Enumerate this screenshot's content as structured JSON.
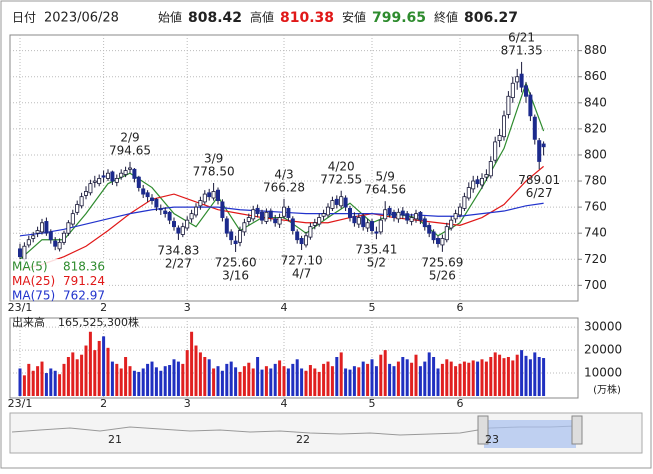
{
  "chart_data": {
    "type": "candlestick",
    "header": {
      "date_label": "日付",
      "date": "2023/06/28",
      "open_label": "始値",
      "open": 808.42,
      "high_label": "高値",
      "high": 810.38,
      "low_label": "安値",
      "low": 799.65,
      "close_label": "終値",
      "close": 806.27
    },
    "categories": [
      "23/1",
      null,
      null,
      null,
      null,
      null,
      null,
      null,
      null,
      null,
      null,
      null,
      null,
      null,
      null,
      null,
      null,
      null,
      null,
      "2",
      null,
      null,
      null,
      null,
      null,
      null,
      null,
      null,
      null,
      null,
      null,
      null,
      null,
      null,
      null,
      null,
      null,
      null,
      "3",
      null,
      null,
      null,
      null,
      null,
      null,
      null,
      null,
      null,
      null,
      null,
      null,
      null,
      null,
      null,
      null,
      null,
      null,
      null,
      null,
      null,
      "4",
      null,
      null,
      null,
      null,
      null,
      null,
      null,
      null,
      null,
      null,
      null,
      null,
      null,
      null,
      null,
      null,
      null,
      null,
      null,
      "5",
      null,
      null,
      null,
      null,
      null,
      null,
      null,
      null,
      null,
      null,
      null,
      null,
      null,
      null,
      null,
      null,
      null,
      null,
      null,
      "6",
      null,
      null,
      null,
      null,
      null,
      null,
      null,
      null,
      null,
      null,
      null,
      null,
      null,
      null,
      null,
      null,
      null,
      null,
      null
    ],
    "candles": [
      [
        728,
        732,
        716,
        722
      ],
      [
        720,
        733,
        718,
        730
      ],
      [
        731,
        738,
        729,
        735
      ],
      [
        736,
        741,
        733,
        738
      ],
      [
        740,
        745,
        737,
        742
      ],
      [
        741,
        751,
        739,
        748
      ],
      [
        749,
        752,
        738,
        740
      ],
      [
        741,
        743,
        732,
        735
      ],
      [
        734,
        737,
        727,
        730
      ],
      [
        728,
        736,
        726,
        733
      ],
      [
        733,
        742,
        731,
        740
      ],
      [
        740,
        750,
        738,
        748
      ],
      [
        747,
        758,
        745,
        755
      ],
      [
        756,
        765,
        754,
        762
      ],
      [
        761,
        771,
        759,
        768
      ],
      [
        769,
        776,
        766,
        772
      ],
      [
        771,
        781,
        769,
        778
      ],
      [
        779,
        784,
        775,
        780
      ],
      [
        778,
        785,
        776,
        782
      ],
      [
        784,
        788,
        779,
        783
      ],
      [
        782,
        789,
        780,
        786
      ],
      [
        787,
        788,
        777,
        780
      ],
      [
        779,
        785,
        776,
        782
      ],
      [
        783,
        789,
        781,
        786
      ],
      [
        785,
        791,
        783,
        788
      ],
      [
        789,
        794.65,
        786,
        790
      ],
      [
        789,
        790,
        779,
        782
      ],
      [
        783,
        784,
        772,
        775
      ],
      [
        774,
        777,
        767,
        770
      ],
      [
        771,
        773,
        764,
        768
      ],
      [
        767,
        770,
        762,
        765
      ],
      [
        766,
        767,
        757,
        760
      ],
      [
        759,
        762,
        754,
        758
      ],
      [
        757,
        760,
        752,
        755
      ],
      [
        756,
        757,
        747,
        750
      ],
      [
        749,
        752,
        742,
        745
      ],
      [
        744,
        746,
        734.83,
        740
      ],
      [
        739,
        748,
        737,
        745
      ],
      [
        744,
        753,
        742,
        750
      ],
      [
        751,
        758,
        748,
        755
      ],
      [
        754,
        763,
        752,
        760
      ],
      [
        761,
        768,
        758,
        765
      ],
      [
        764,
        773,
        762,
        770
      ],
      [
        771,
        774,
        765,
        768
      ],
      [
        767,
        778.5,
        765,
        772
      ],
      [
        773,
        775,
        762,
        765
      ],
      [
        764,
        766,
        749,
        752
      ],
      [
        751,
        753,
        737,
        740
      ],
      [
        741,
        743,
        731,
        735
      ],
      [
        734,
        738,
        725.6,
        732
      ],
      [
        733,
        745,
        730,
        742
      ],
      [
        741,
        751,
        738,
        748
      ],
      [
        749,
        755,
        746,
        752
      ],
      [
        751,
        761,
        749,
        758
      ],
      [
        759,
        762,
        752,
        755
      ],
      [
        756,
        758,
        747,
        750
      ],
      [
        749,
        759,
        747,
        756
      ],
      [
        757,
        759,
        749,
        752
      ],
      [
        751,
        754,
        745,
        748
      ],
      [
        747,
        755,
        744,
        752
      ],
      [
        753,
        766.28,
        751,
        760
      ],
      [
        759,
        761,
        749,
        752
      ],
      [
        751,
        753,
        739,
        742
      ],
      [
        741,
        743,
        732,
        735
      ],
      [
        736,
        738,
        727.1,
        732
      ],
      [
        731,
        741,
        729,
        738
      ],
      [
        737,
        748,
        735,
        745
      ],
      [
        746,
        751,
        743,
        748
      ],
      [
        747,
        755,
        745,
        752
      ],
      [
        753,
        758,
        750,
        755
      ],
      [
        754,
        763,
        752,
        760
      ],
      [
        759,
        768,
        757,
        765
      ],
      [
        766,
        769,
        759,
        762
      ],
      [
        761,
        772.55,
        759,
        768
      ],
      [
        767,
        769,
        757,
        760
      ],
      [
        759,
        761,
        749,
        752
      ],
      [
        753,
        756,
        745,
        748
      ],
      [
        747,
        755,
        744,
        752
      ],
      [
        753,
        755,
        742,
        745
      ],
      [
        744,
        751,
        741,
        748
      ],
      [
        749,
        751,
        739,
        742
      ],
      [
        741,
        745,
        735.41,
        740
      ],
      [
        741,
        753,
        739,
        750
      ],
      [
        751,
        764.56,
        749,
        758
      ],
      [
        759,
        761,
        752,
        755
      ],
      [
        756,
        758,
        749,
        752
      ],
      [
        751,
        759,
        748,
        756
      ],
      [
        757,
        760,
        751,
        754
      ],
      [
        755,
        757,
        747,
        750
      ],
      [
        749,
        755,
        746,
        752
      ],
      [
        751,
        758,
        748,
        755
      ],
      [
        756,
        757,
        747,
        750
      ],
      [
        751,
        753,
        742,
        745
      ],
      [
        746,
        748,
        737,
        740
      ],
      [
        741,
        743,
        732,
        735
      ],
      [
        736,
        738,
        729,
        732
      ],
      [
        731,
        739,
        725.69,
        736
      ],
      [
        735,
        748,
        733,
        745
      ],
      [
        744,
        753,
        742,
        750
      ],
      [
        751,
        758,
        748,
        755
      ],
      [
        754,
        763,
        752,
        760
      ],
      [
        759,
        771,
        757,
        768
      ],
      [
        767,
        779,
        765,
        775
      ],
      [
        774,
        784,
        771,
        780
      ],
      [
        781,
        784,
        775,
        778
      ],
      [
        777,
        786,
        774,
        782
      ],
      [
        783,
        789,
        780,
        785
      ],
      [
        784,
        799,
        782,
        795
      ],
      [
        796,
        814,
        794,
        810
      ],
      [
        811,
        820,
        806,
        815
      ],
      [
        814,
        834,
        811,
        830
      ],
      [
        831,
        849,
        828,
        845
      ],
      [
        844,
        860,
        840,
        855
      ],
      [
        856,
        866,
        850,
        860
      ],
      [
        862,
        871.35,
        848,
        852
      ],
      [
        853,
        856,
        840,
        845
      ],
      [
        846,
        848,
        826,
        830
      ],
      [
        829,
        831,
        808,
        812
      ],
      [
        811,
        813,
        789.01,
        795
      ],
      [
        808.42,
        810.38,
        799.65,
        806.27
      ]
    ],
    "up_color": "#ffffff",
    "down_color": "#1c2a8c",
    "outline_color": "#1a1a3a",
    "ylim": [
      688,
      892
    ],
    "yticks": [
      700,
      720,
      740,
      760,
      780,
      800,
      820,
      840,
      860,
      880
    ],
    "grid": true,
    "ma_series": [
      {
        "name": "MA(5)",
        "color": "#2e8b2e",
        "x": [
          0,
          5,
          10,
          15,
          20,
          25,
          30,
          35,
          40,
          45,
          50,
          55,
          60,
          65,
          70,
          75,
          80,
          85,
          90,
          95,
          100,
          105,
          110,
          115,
          119
        ],
        "values": [
          720,
          735,
          735,
          755,
          778,
          786,
          775,
          755,
          745,
          768,
          742,
          752,
          752,
          740,
          752,
          763,
          748,
          755,
          752,
          738,
          748,
          775,
          805,
          855,
          818.36
        ]
      },
      {
        "name": "MA(25)",
        "color": "#e01818",
        "x": [
          0,
          5,
          10,
          15,
          20,
          25,
          30,
          35,
          40,
          45,
          50,
          55,
          60,
          65,
          70,
          75,
          80,
          85,
          90,
          95,
          100,
          105,
          110,
          115,
          119
        ],
        "values": [
          712,
          716,
          722,
          730,
          742,
          755,
          766,
          770,
          764,
          758,
          755,
          752,
          750,
          748,
          748,
          752,
          755,
          752,
          750,
          748,
          746,
          752,
          762,
          780,
          791.24
        ]
      },
      {
        "name": "MA(75)",
        "color": "#2233cc",
        "x": [
          0,
          5,
          10,
          15,
          20,
          25,
          30,
          35,
          40,
          45,
          50,
          55,
          60,
          65,
          70,
          75,
          80,
          85,
          90,
          95,
          100,
          105,
          110,
          115,
          119
        ],
        "values": [
          738,
          740,
          743,
          747,
          751,
          755,
          758,
          760,
          760,
          760,
          758,
          757,
          756,
          755,
          755,
          755,
          755,
          754,
          754,
          753,
          753,
          755,
          757,
          761,
          762.97
        ]
      }
    ],
    "high_labels": [
      {
        "date": "2/9",
        "value": 794.65,
        "x": 25
      },
      {
        "date": "3/9",
        "value": 778.5,
        "value_label": "778.50",
        "x": 44
      },
      {
        "date": "4/3",
        "value": 766.28,
        "x": 60
      },
      {
        "date": "4/20",
        "value": 772.55,
        "x": 73
      },
      {
        "date": "5/9",
        "value": 764.56,
        "x": 83
      },
      {
        "date": "6/21",
        "value": 871.35,
        "x": 114
      }
    ],
    "low_labels": [
      {
        "date": "2/27",
        "value": 734.83,
        "x": 36
      },
      {
        "date": "3/16",
        "value": 725.6,
        "value_label": "725.60",
        "x": 49
      },
      {
        "date": "4/7",
        "value": 727.1,
        "value_label": "727.10",
        "x": 64
      },
      {
        "date": "5/2",
        "value": 735.41,
        "x": 81
      },
      {
        "date": "5/26",
        "value": 725.69,
        "x": 96
      },
      {
        "date": "6/27",
        "value": 789.01,
        "x": 118
      }
    ],
    "volume": {
      "label": "出来高",
      "total": "165,525,300株",
      "unit": "(万株)",
      "up_color": "#e02020",
      "down_color": "#2030c0",
      "values": [
        12000,
        9000,
        14000,
        11000,
        13000,
        15000,
        10000,
        12000,
        11000,
        9500,
        14000,
        17000,
        19000,
        16000,
        18000,
        22000,
        28000,
        20000,
        24000,
        26000,
        21000,
        15000,
        14000,
        12000,
        17000,
        13000,
        11000,
        10500,
        12000,
        14000,
        15000,
        12500,
        11000,
        13000,
        13500,
        16000,
        15000,
        14000,
        20000,
        28000,
        22000,
        19000,
        17000,
        16000,
        12000,
        13000,
        11000,
        14000,
        15000,
        12500,
        10500,
        13000,
        14500,
        12000,
        17000,
        11500,
        13000,
        12000,
        14000,
        15500,
        13000,
        12000,
        14000,
        16000,
        12000,
        11000,
        13500,
        12000,
        10500,
        14000,
        15000,
        13000,
        17000,
        19000,
        12000,
        11500,
        13000,
        12500,
        15000,
        14000,
        16000,
        13000,
        18000,
        20000,
        14000,
        13000,
        15000,
        17000,
        16000,
        14500,
        18000,
        13000,
        15000,
        19000,
        17000,
        12000,
        14000,
        16000,
        15000,
        13000,
        14000,
        15000,
        14500,
        15500,
        15000,
        16000,
        15000,
        17000,
        19000,
        18000,
        16500,
        17000,
        15500,
        18000,
        20000,
        17500,
        16000,
        19000,
        17000,
        16552.53
      ],
      "ylim": [
        0,
        34000
      ],
      "yticks": [
        10000,
        20000,
        30000
      ]
    },
    "navigator_labels": [
      "21",
      "22",
      "23"
    ]
  }
}
